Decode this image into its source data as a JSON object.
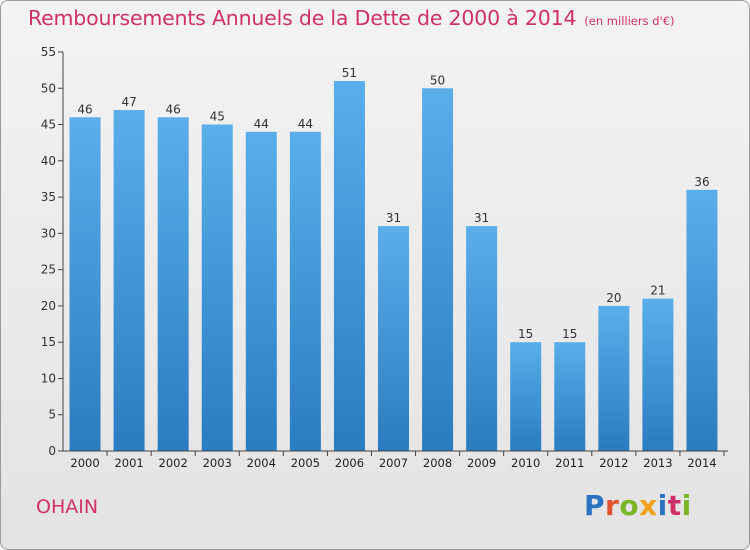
{
  "title": "Remboursements Annuels de la Dette de 2000 à 2014",
  "unit_note": "(en milliers d'€)",
  "city": "OHAIN",
  "logo": {
    "text": "Proxiti",
    "letter_colors": [
      "#2b73c2",
      "#e0542f",
      "#7ab427",
      "#f0a019",
      "#2b73c2",
      "#d0306a",
      "#7ab427"
    ]
  },
  "colors": {
    "title": "#d0306a",
    "bar_top": "#5aaeea",
    "bar_bottom": "#2a7cc0",
    "axis": "#444444",
    "grid": "#d0d0d0"
  },
  "chart_data": {
    "type": "bar",
    "title": "Remboursements Annuels de la Dette de 2000 à 2014",
    "xlabel": "",
    "ylabel": "",
    "categories": [
      "2000",
      "2001",
      "2002",
      "2003",
      "2004",
      "2005",
      "2006",
      "2007",
      "2008",
      "2009",
      "2010",
      "2011",
      "2012",
      "2013",
      "2014"
    ],
    "values": [
      46,
      47,
      46,
      45,
      44,
      44,
      51,
      31,
      50,
      31,
      15,
      15,
      20,
      21,
      36
    ],
    "ylim": [
      0,
      55
    ],
    "yticks": [
      0,
      5,
      10,
      15,
      20,
      25,
      30,
      35,
      40,
      45,
      50,
      55
    ],
    "grid": false,
    "legend": "none"
  }
}
